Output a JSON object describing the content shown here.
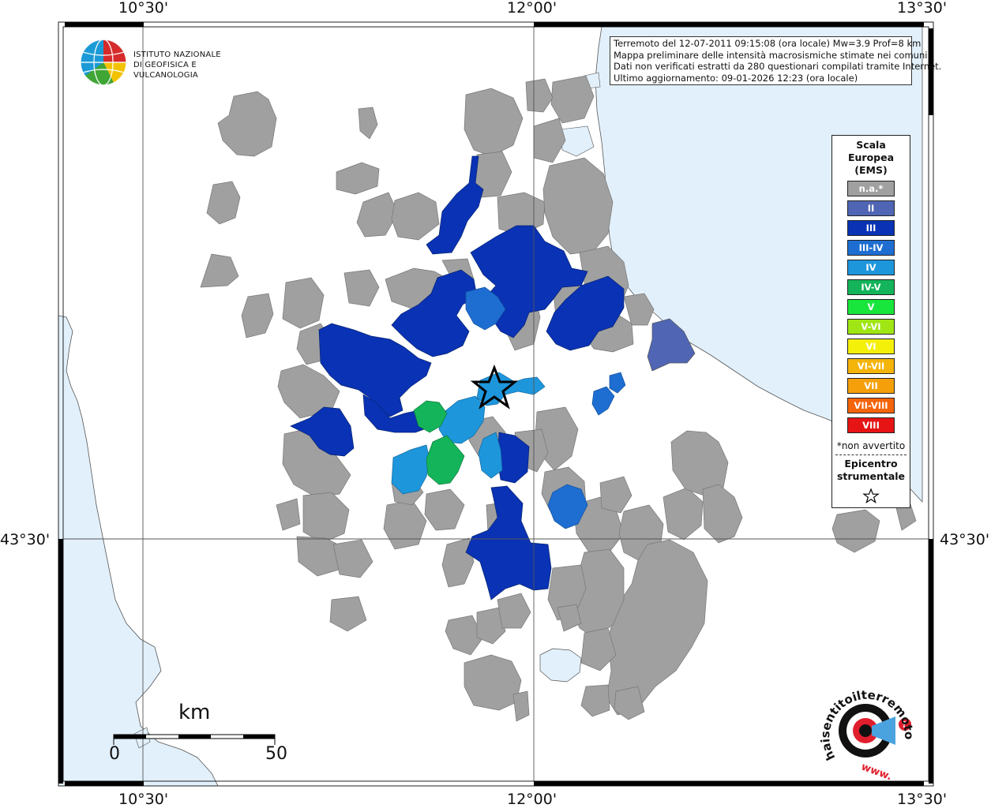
{
  "coords": {
    "top": [
      "10°30'",
      "12°00'",
      "13°30'"
    ],
    "bottom": [
      "10°30'",
      "12°00'",
      "13°30'"
    ],
    "left": "43°30'",
    "right": "43°30'"
  },
  "institute": {
    "line1": "ISTITUTO NAZIONALE",
    "line2": "DI GEOFISICA E VULCANOLOGIA",
    "logo_icon": "ingv-globe-logo"
  },
  "info": {
    "line1": "Terremoto del 12-07-2011 09:15:08 (ora locale) Mw=3.9 Prof=8 km",
    "line2": "Mappa preliminare delle intensità macrosismiche stimate nei comuni",
    "line3": "Dati non verificati estratti da 280 questionari compilati tramite Internet.",
    "line4": "Ultimo aggiornamento: 09-01-2026 12:23 (ora locale)"
  },
  "legend": {
    "title_lines": [
      "Scala",
      "Europea",
      "(EMS)"
    ],
    "items": [
      {
        "label": "n.a.*",
        "color": "#a0a0a0"
      },
      {
        "label": "II",
        "color": "#5066b4"
      },
      {
        "label": "III",
        "color": "#0a32b4"
      },
      {
        "label": "III-IV",
        "color": "#1e6ed2"
      },
      {
        "label": "IV",
        "color": "#1e96dc"
      },
      {
        "label": "IV-V",
        "color": "#14b45a"
      },
      {
        "label": "V",
        "color": "#19e63c"
      },
      {
        "label": "V-VI",
        "color": "#a0e614"
      },
      {
        "label": "VI",
        "color": "#f5f00a"
      },
      {
        "label": "VI-VII",
        "color": "#f5b40a"
      },
      {
        "label": "VII",
        "color": "#f5a00a"
      },
      {
        "label": "VII-VIII",
        "color": "#f5640a"
      },
      {
        "label": "VIII",
        "color": "#e61414"
      }
    ],
    "note": "*non avvertito",
    "epicenter_lines": [
      "Epicentro",
      "strumentale"
    ],
    "star_icon": "star-outline-icon"
  },
  "scale_bar": {
    "unit": "km",
    "min": "0",
    "max": "50"
  },
  "colors": {
    "sea": "#e2f0fb",
    "not_available": "#a0a0a0",
    "II": "#5066b4",
    "III": "#0a32b4",
    "III-IV": "#1e6ed2",
    "IV": "#1e96dc",
    "IV-V": "#14b45a"
  },
  "watermark": {
    "text": "haisentitoilterremoto.it",
    "prefix": "www.",
    "icon": "seismograph-logo"
  }
}
